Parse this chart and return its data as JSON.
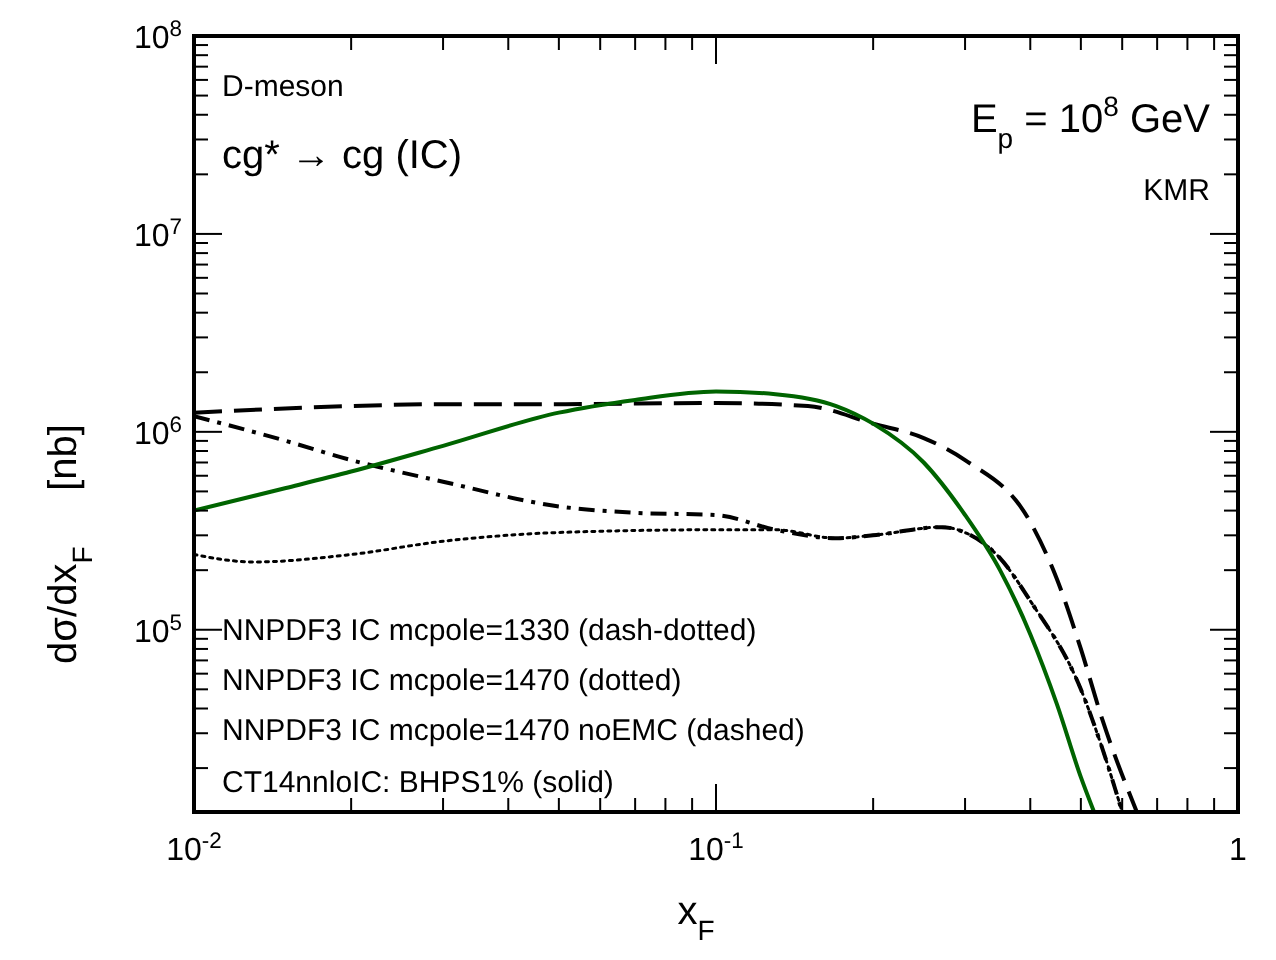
{
  "chart_data": {
    "type": "line",
    "xlabel": "x$_{F}$",
    "ylabel": "dσ/dx$_{F}$     [nb]",
    "log": "xy",
    "grid": false,
    "xlim": [
      0.01,
      1
    ],
    "ylim": [
      12000,
      100000000
    ],
    "xticks": [
      {
        "value": 0.01,
        "label": "10$^{-2}$"
      },
      {
        "value": 0.02,
        "label": null
      },
      {
        "value": 0.03,
        "label": null
      },
      {
        "value": 0.04,
        "label": null
      },
      {
        "value": 0.05,
        "label": null
      },
      {
        "value": 0.06,
        "label": null
      },
      {
        "value": 0.07,
        "label": null
      },
      {
        "value": 0.08,
        "label": null
      },
      {
        "value": 0.09,
        "label": null
      },
      {
        "value": 0.1,
        "label": "10$^{-1}$"
      },
      {
        "value": 0.2,
        "label": null
      },
      {
        "value": 0.3,
        "label": null
      },
      {
        "value": 0.4,
        "label": null
      },
      {
        "value": 0.5,
        "label": null
      },
      {
        "value": 0.6,
        "label": null
      },
      {
        "value": 0.7,
        "label": null
      },
      {
        "value": 0.8,
        "label": null
      },
      {
        "value": 0.9,
        "label": null
      },
      1
    ],
    "yticks": [
      {
        "value": 20000,
        "label": null
      },
      {
        "value": 30000,
        "label": null
      },
      {
        "value": 40000,
        "label": null
      },
      {
        "value": 50000,
        "label": null
      },
      {
        "value": 60000,
        "label": null
      },
      {
        "value": 70000,
        "label": null
      },
      {
        "value": 80000,
        "label": null
      },
      {
        "value": 90000,
        "label": null
      },
      {
        "value": 100000,
        "label": "10$^{5}$"
      },
      {
        "value": 200000,
        "label": null
      },
      {
        "value": 300000,
        "label": null
      },
      {
        "value": 400000,
        "label": null
      },
      {
        "value": 500000,
        "label": null
      },
      {
        "value": 600000,
        "label": null
      },
      {
        "value": 700000,
        "label": null
      },
      {
        "value": 800000,
        "label": null
      },
      {
        "value": 900000,
        "label": null
      },
      {
        "value": 1000000,
        "label": "10$^{6}$"
      },
      {
        "value": 2000000,
        "label": null
      },
      {
        "value": 3000000,
        "label": null
      },
      {
        "value": 4000000,
        "label": null
      },
      {
        "value": 5000000,
        "label": null
      },
      {
        "value": 6000000,
        "label": null
      },
      {
        "value": 7000000,
        "label": null
      },
      {
        "value": 8000000,
        "label": null
      },
      {
        "value": 9000000,
        "label": null
      },
      {
        "value": 10000000,
        "label": "10$^{7}$"
      },
      {
        "value": 20000000,
        "label": null
      },
      {
        "value": 30000000,
        "label": null
      },
      {
        "value": 40000000,
        "label": null
      },
      {
        "value": 50000000,
        "label": null
      },
      {
        "value": 60000000,
        "label": null
      },
      {
        "value": 70000000,
        "label": null
      },
      {
        "value": 80000000,
        "label": null
      },
      {
        "value": 90000000,
        "label": null
      },
      {
        "value": 100000000,
        "label": "10$^{8}$"
      }
    ],
    "annotations": [
      "D-meson",
      "cg* → cg (IC)",
      "E$_{p}$ = 10$^{8}$ GeV",
      "KMR",
      "NNPDF3 IC mcpole=1330 (dash-dotted)",
      "NNPDF3 IC mcpole=1470 (dotted)",
      "NNPDF3 IC mcpole=1470 noEMC (dashed)",
      "CT14nnloIC: BHPS1% (solid)"
    ],
    "series": [
      {
        "color": "#000000",
        "line_style": "dashdot",
        "x": [
          0.01,
          0.015,
          0.02,
          0.03,
          0.05,
          0.07,
          0.1,
          0.13,
          0.17,
          0.2,
          0.27,
          0.3,
          0.35,
          0.4,
          0.5,
          0.55,
          0.6
        ],
        "values": [
          1200000,
          900000,
          720000,
          560000,
          420000,
          390000,
          380000,
          320000,
          290000,
          300000,
          330000,
          310000,
          230000,
          140000,
          50000,
          25000,
          12000
        ]
      },
      {
        "color": "#000000",
        "line_style": "dotted",
        "x": [
          0.01,
          0.013,
          0.02,
          0.03,
          0.05,
          0.1,
          0.13,
          0.17,
          0.2,
          0.27,
          0.3,
          0.35,
          0.4,
          0.5,
          0.55,
          0.6
        ],
        "values": [
          240000,
          220000,
          240000,
          280000,
          310000,
          320000,
          320000,
          290000,
          300000,
          330000,
          310000,
          230000,
          140000,
          50000,
          25000,
          12000
        ]
      },
      {
        "color": "#000000",
        "line_style": "dashed",
        "x": [
          0.01,
          0.02,
          0.03,
          0.05,
          0.1,
          0.15,
          0.2,
          0.25,
          0.3,
          0.4,
          0.45,
          0.5,
          0.55,
          0.64
        ],
        "values": [
          1250000,
          1350000,
          1380000,
          1380000,
          1400000,
          1350000,
          1100000,
          930000,
          720000,
          350000,
          180000,
          80000,
          35000,
          12000
        ]
      },
      {
        "color": "#006400",
        "line_style": "solid",
        "x": [
          0.01,
          0.015,
          0.02,
          0.03,
          0.05,
          0.07,
          0.1,
          0.13,
          0.17,
          0.2,
          0.25,
          0.3,
          0.35,
          0.4,
          0.45,
          0.5,
          0.53
        ],
        "values": [
          400000,
          520000,
          630000,
          850000,
          1250000,
          1450000,
          1600000,
          1550000,
          1350000,
          1100000,
          700000,
          380000,
          200000,
          95000,
          42000,
          18000,
          12000
        ]
      }
    ]
  }
}
